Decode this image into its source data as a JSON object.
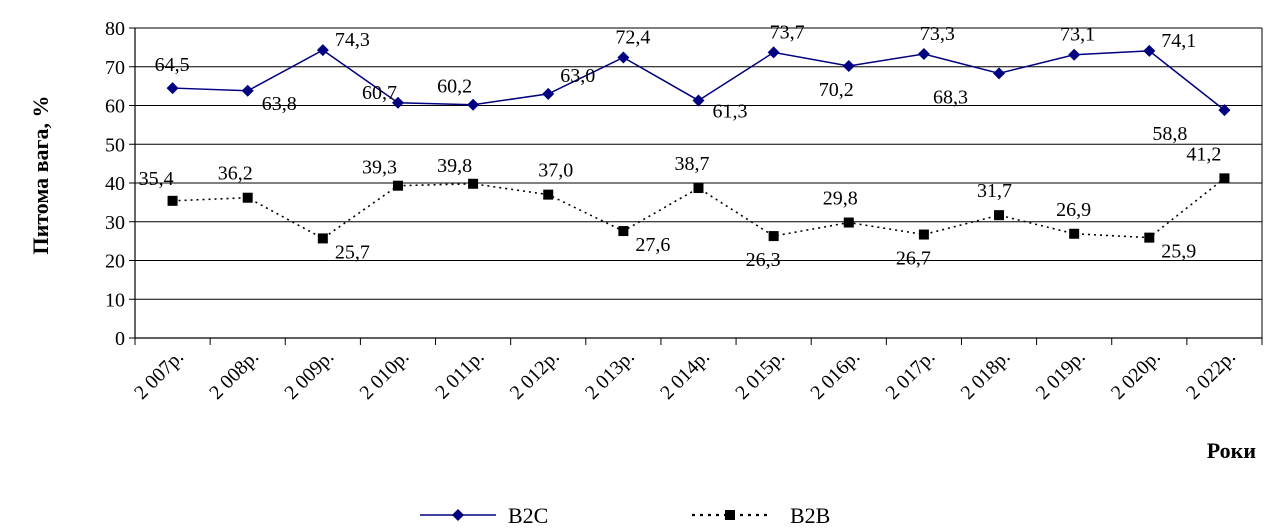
{
  "chart_data": {
    "type": "line",
    "title": "",
    "xlabel": "Роки",
    "ylabel": "Питома вага, %",
    "ylim": [
      0,
      80
    ],
    "yticks": [
      0,
      10,
      20,
      30,
      40,
      50,
      60,
      70,
      80
    ],
    "grid": true,
    "legend_position": "bottom",
    "categories": [
      "2 007р.",
      "2 008р.",
      "2 009р.",
      "2 010р.",
      "2 011р.",
      "2 012р.",
      "2 013р.",
      "2 014р.",
      "2 015р.",
      "2 016р.",
      "2 017р.",
      "2 018р.",
      "2 019р.",
      "2 020р.",
      "2 022р."
    ],
    "series": [
      {
        "name": "B2C",
        "color": "#000080",
        "marker": "diamond",
        "line_style": "solid",
        "values": [
          64.5,
          63.8,
          74.3,
          60.7,
          60.2,
          63.0,
          72.4,
          61.3,
          73.7,
          70.2,
          73.3,
          68.3,
          73.1,
          74.1,
          58.8
        ],
        "labels": [
          "64,5",
          "63,8",
          "74,3",
          "60,7",
          "60,2",
          "63,0",
          "72,4",
          "61,3",
          "73,7",
          "70,2",
          "73,3",
          "68,3",
          "73,1",
          "74,1",
          "58,8"
        ]
      },
      {
        "name": "B2B",
        "color": "#000000",
        "marker": "square",
        "line_style": "dotted",
        "values": [
          35.4,
          36.2,
          25.7,
          39.3,
          39.8,
          37.0,
          27.6,
          38.7,
          26.3,
          29.8,
          26.7,
          31.7,
          26.9,
          25.9,
          41.2
        ],
        "labels": [
          "35,4",
          "36,2",
          "25,7",
          "39,3",
          "39,8",
          "37,0",
          "27,6",
          "38,7",
          "26,3",
          "29,8",
          "26,7",
          "31,7",
          "26,9",
          "25,9",
          "41,2"
        ]
      }
    ]
  }
}
